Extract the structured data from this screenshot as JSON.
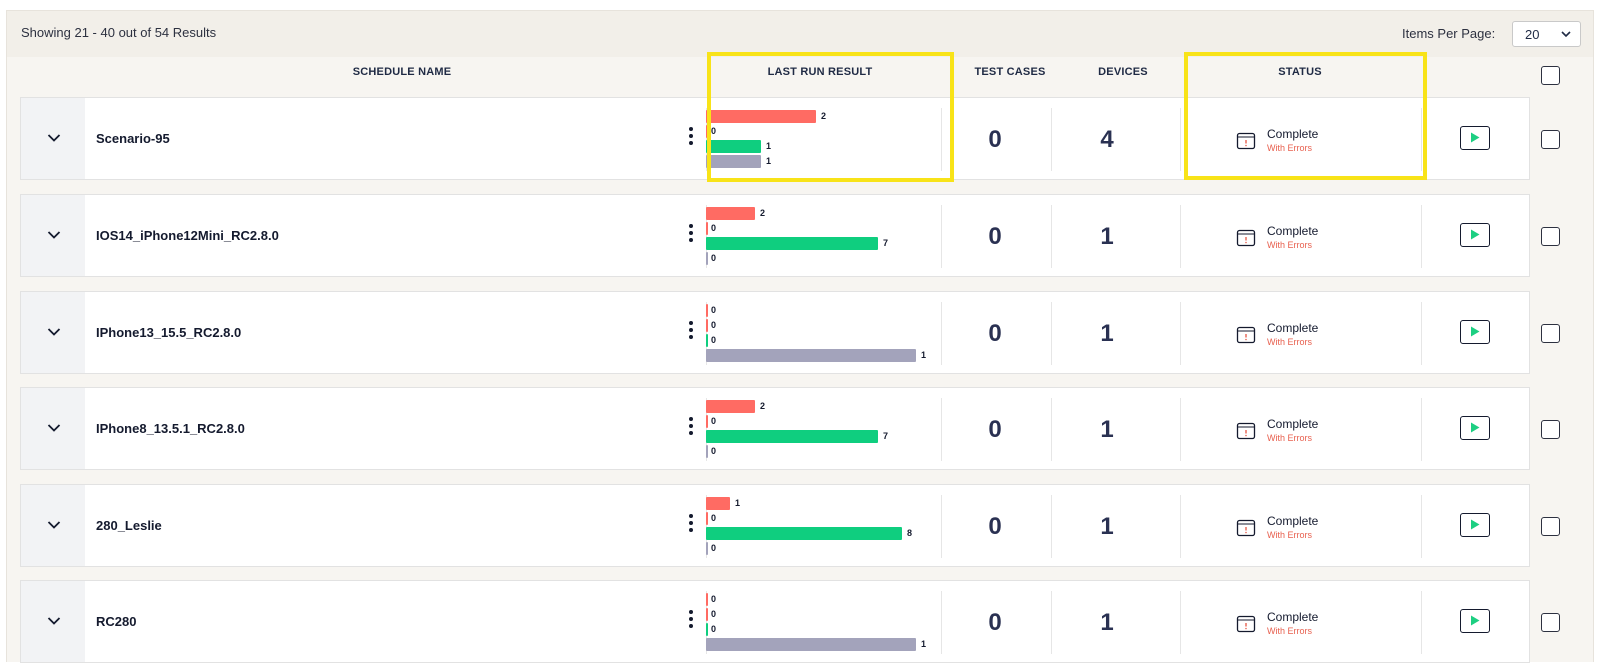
{
  "header": {
    "results_text": "Showing 21 - 40 out of 54 Results",
    "items_per_page_label": "Items Per Page:",
    "items_per_page_value": "20"
  },
  "columns": {
    "schedule_name": "SCHEDULE NAME",
    "last_run_result": "LAST RUN RESULT",
    "test_cases": "TEST CASES",
    "devices": "DEVICES",
    "status": "STATUS"
  },
  "colors": {
    "failed": "#ff6b63",
    "passed": "#0fce7f",
    "skipped": "#a3a3bb",
    "highlight": "#f8e318",
    "status_error": "#e8604f",
    "play_icon": "#1dcf82"
  },
  "rows": [
    {
      "name": "Scenario-95",
      "results": [
        2,
        0,
        1,
        1
      ],
      "test_cases": "0",
      "devices": "4",
      "status": "Complete",
      "status_sub": "With Errors"
    },
    {
      "name": "IOS14_iPhone12Mini_RC2.8.0",
      "results": [
        2,
        0,
        7,
        0
      ],
      "test_cases": "0",
      "devices": "1",
      "status": "Complete",
      "status_sub": "With Errors"
    },
    {
      "name": "IPhone13_15.5_RC2.8.0",
      "results": [
        0,
        0,
        0,
        1
      ],
      "test_cases": "0",
      "devices": "1",
      "status": "Complete",
      "status_sub": "With Errors"
    },
    {
      "name": "IPhone8_13.5.1_RC2.8.0",
      "results": [
        2,
        0,
        7,
        0
      ],
      "test_cases": "0",
      "devices": "1",
      "status": "Complete",
      "status_sub": "With Errors"
    },
    {
      "name": "280_Leslie",
      "results": [
        1,
        0,
        8,
        0
      ],
      "test_cases": "0",
      "devices": "1",
      "status": "Complete",
      "status_sub": "With Errors"
    },
    {
      "name": "RC280",
      "results": [
        0,
        0,
        0,
        1
      ],
      "test_cases": "0",
      "devices": "1",
      "status": "Complete",
      "status_sub": "With Errors"
    }
  ]
}
